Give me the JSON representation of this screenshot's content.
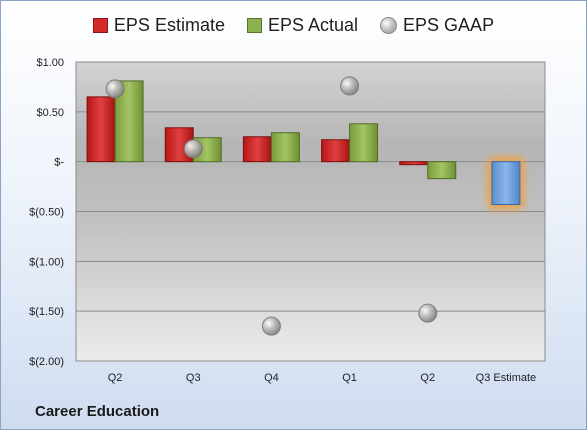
{
  "company_name": "Career Education",
  "chart_data": {
    "type": "bar",
    "categories": [
      "Q2",
      "Q3",
      "Q4",
      "Q1",
      "Q2",
      "Q3 Estimate"
    ],
    "series": [
      {
        "name": "EPS Estimate",
        "values": [
          0.65,
          0.34,
          0.25,
          0.22,
          -0.03,
          null
        ],
        "color": "#d42a2a"
      },
      {
        "name": "EPS Actual",
        "values": [
          0.81,
          0.24,
          0.29,
          0.38,
          -0.17,
          null
        ],
        "color": "#8db04e"
      },
      {
        "name": "EPS GAAP",
        "values": [
          0.73,
          0.13,
          -1.65,
          0.76,
          -1.52,
          null
        ],
        "color": "#a8a8a8",
        "type": "scatter"
      }
    ],
    "estimate": {
      "category": "Q3 Estimate",
      "value": -0.43,
      "color": "#6fa0dc",
      "glow": "#f0a040"
    },
    "yticks": [
      {
        "value": 1.0,
        "label": "$1.00"
      },
      {
        "value": 0.5,
        "label": "$0.50"
      },
      {
        "value": 0.0,
        "label": "$-"
      },
      {
        "value": -0.5,
        "label": "$(0.50)"
      },
      {
        "value": -1.0,
        "label": "$(1.00)"
      },
      {
        "value": -1.5,
        "label": "$(1.50)"
      },
      {
        "value": -2.0,
        "label": "$(2.00)"
      }
    ],
    "ylim": [
      -2.0,
      1.0
    ],
    "grid": true,
    "legend_position": "top"
  }
}
